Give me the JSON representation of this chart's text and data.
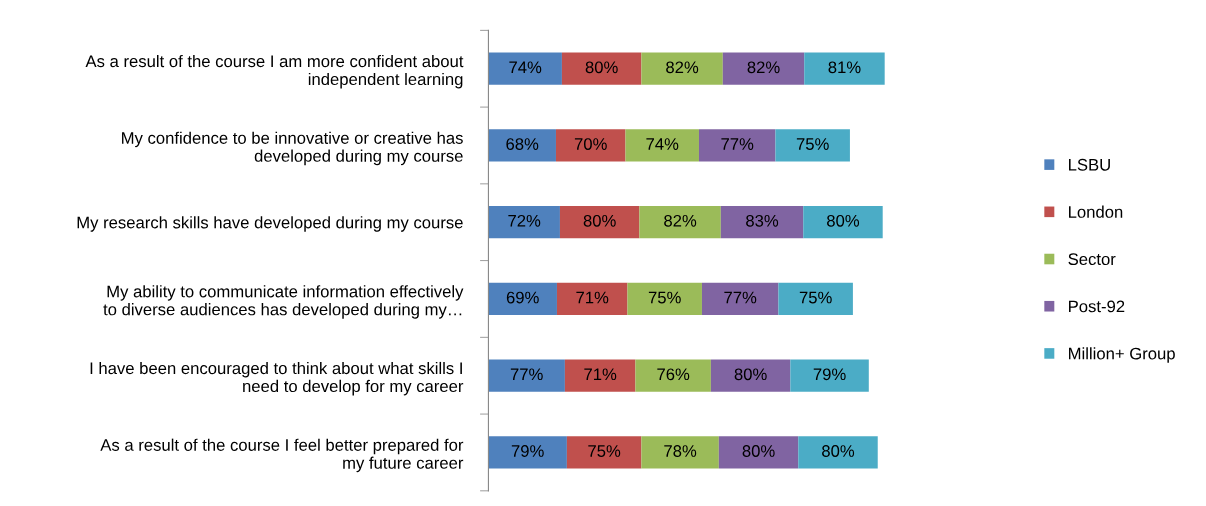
{
  "chart_data": {
    "type": "bar",
    "orientation": "horizontal",
    "stacked": true,
    "legend": "right",
    "grid": false,
    "categories": [
      "As a result of the course I am more confident about\nindependent learning",
      "My confidence to be innovative or creative has\ndeveloped during my course",
      "My research skills have developed during my course",
      "My ability to communicate information effectively\nto diverse audiences has developed during my…",
      "I have been encouraged to think about what skills I\nneed to develop for my career",
      "As a result of the course I feel better prepared for\nmy future career"
    ],
    "series": [
      {
        "name": "LSBU",
        "color": "#4f81bd",
        "values": [
          74,
          68,
          72,
          69,
          77,
          79
        ],
        "value_labels": [
          "74%",
          "68%",
          "72%",
          "69%",
          "77%",
          "79%"
        ]
      },
      {
        "name": "London",
        "color": "#c0504d",
        "values": [
          80,
          70,
          80,
          71,
          71,
          75
        ],
        "value_labels": [
          "80%",
          "70%",
          "80%",
          "71%",
          "71%",
          "75%"
        ]
      },
      {
        "name": "Sector",
        "color": "#9bbb59",
        "values": [
          82,
          74,
          82,
          75,
          76,
          78
        ],
        "value_labels": [
          "82%",
          "74%",
          "82%",
          "75%",
          "76%",
          "78%"
        ]
      },
      {
        "name": "Post-92",
        "color": "#8064a2",
        "values": [
          82,
          77,
          83,
          77,
          80,
          80
        ],
        "value_labels": [
          "82%",
          "77%",
          "83%",
          "77%",
          "80%",
          "80%"
        ]
      },
      {
        "name": "Million+ Group",
        "color": "#4bacc6",
        "values": [
          81,
          75,
          80,
          75,
          79,
          80
        ],
        "value_labels": [
          "81%",
          "75%",
          "80%",
          "75%",
          "79%",
          "80%"
        ]
      }
    ]
  }
}
